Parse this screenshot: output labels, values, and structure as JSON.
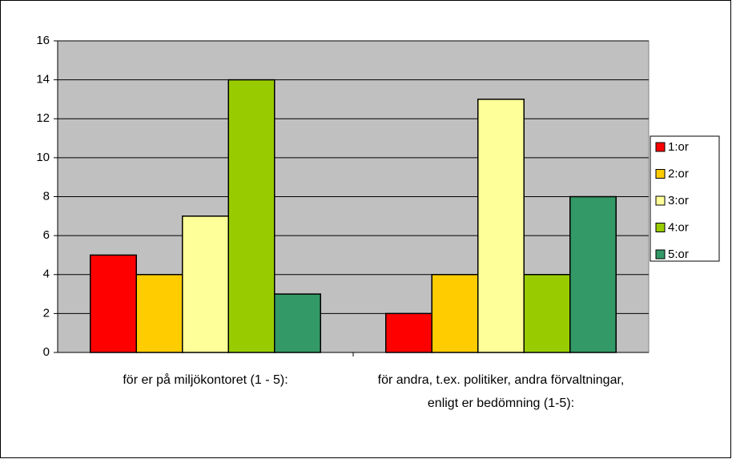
{
  "chart_data": {
    "type": "bar",
    "categories": [
      "för er på miljökontoret (1 - 5):",
      "för andra, t.ex. politiker, andra förvaltningar, enligt er bedömning (1-5):"
    ],
    "series": [
      {
        "name": "1:or",
        "color": "#ff0000",
        "values": [
          5,
          2
        ]
      },
      {
        "name": "2:or",
        "color": "#ffcc00",
        "values": [
          4,
          4
        ]
      },
      {
        "name": "3:or",
        "color": "#ffff99",
        "values": [
          7,
          13
        ]
      },
      {
        "name": "4:or",
        "color": "#99cc00",
        "values": [
          14,
          4
        ]
      },
      {
        "name": "5:or",
        "color": "#339966",
        "values": [
          3,
          8
        ]
      }
    ],
    "ylim": [
      0,
      16
    ],
    "yticks": [
      0,
      2,
      4,
      6,
      8,
      10,
      12,
      14,
      16
    ],
    "grid": true,
    "legend": "right"
  }
}
